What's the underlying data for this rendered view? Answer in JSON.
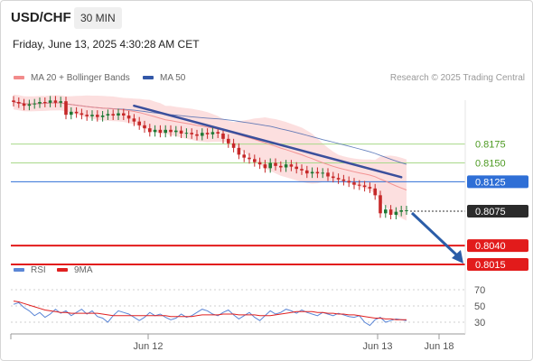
{
  "header": {
    "symbol": "USD/CHF",
    "timeframe": "30 MIN",
    "datetime": "Friday, June 13, 2025 4:30:28 AM CET"
  },
  "legend": {
    "ma20": {
      "label": "MA 20 + Bollinger Bands",
      "color": "#f28b8b"
    },
    "ma50": {
      "label": "MA 50",
      "color": "#3358a8"
    }
  },
  "credit": "Research © 2025 Trading Central",
  "rsi_legend": {
    "rsi": {
      "label": "RSI",
      "color": "#5b86d6"
    },
    "ma9": {
      "label": "9MA",
      "color": "#e02020"
    }
  },
  "chart_data": [
    {
      "type": "candlestick",
      "ylim": [
        0.7995,
        0.8245
      ],
      "x_labels": [
        "Jun 12",
        "Jun 13",
        "Jun 18"
      ],
      "closes": [
        0.8231,
        0.8229,
        0.8226,
        0.8228,
        0.8229,
        0.8231,
        0.823,
        0.8233,
        0.823,
        0.8232,
        0.8214,
        0.8218,
        0.8216,
        0.8214,
        0.8212,
        0.8214,
        0.8211,
        0.8213,
        0.8215,
        0.8213,
        0.8216,
        0.8213,
        0.8209,
        0.8205,
        0.82,
        0.8196,
        0.8191,
        0.8194,
        0.819,
        0.8194,
        0.8191,
        0.8193,
        0.8189,
        0.819,
        0.8188,
        0.8186,
        0.819,
        0.8188,
        0.8191,
        0.8189,
        0.8182,
        0.8176,
        0.817,
        0.8161,
        0.8157,
        0.8155,
        0.8151,
        0.8148,
        0.8143,
        0.815,
        0.8146,
        0.8144,
        0.8148,
        0.8145,
        0.8142,
        0.814,
        0.8136,
        0.8138,
        0.8136,
        0.8137,
        0.8132,
        0.813,
        0.8128,
        0.8126,
        0.8124,
        0.8121,
        0.812,
        0.8118,
        0.8116,
        0.8107,
        0.8083,
        0.8088,
        0.8081,
        0.8085,
        0.8087,
        0.8087
      ],
      "current_price": "0.8075",
      "levels": [
        {
          "value": 0.8175,
          "label": "0.8175",
          "kind": "resistance"
        },
        {
          "value": 0.815,
          "label": "0.8150",
          "kind": "resistance"
        },
        {
          "value": 0.8125,
          "label": "0.8125",
          "kind": "pivot"
        },
        {
          "value": 0.804,
          "label": "0.8040",
          "kind": "support"
        },
        {
          "value": 0.8015,
          "label": "0.8015",
          "kind": "support"
        }
      ],
      "trendline": [
        [
          0.8226,
          0.8131
        ]
      ],
      "projection_target": 0.8015,
      "colors": {
        "up": "#1e7a35",
        "down": "#c62828",
        "band": "#fbd4d4",
        "ma20": "#f28b8b",
        "ma50": "#3358a8",
        "trend": "#3a4f9c"
      }
    },
    {
      "type": "line",
      "name": "RSI",
      "ylim": [
        20,
        80
      ],
      "y_ticks": [
        70,
        50,
        30
      ],
      "series": [
        {
          "name": "RSI",
          "values": [
            52,
            54,
            48,
            44,
            38,
            42,
            36,
            40,
            46,
            41,
            44,
            38,
            42,
            46,
            40,
            44,
            37,
            35,
            30,
            38,
            44,
            42,
            40,
            36,
            32,
            36,
            42,
            38,
            40,
            36,
            33,
            35,
            40,
            36,
            38,
            42,
            46,
            44,
            40,
            38,
            42,
            45,
            39,
            34,
            38,
            42,
            36,
            32,
            38,
            44,
            40,
            42,
            46,
            44,
            41,
            45,
            42,
            40,
            38,
            42,
            40,
            38,
            41,
            39,
            37,
            36,
            38,
            30,
            26,
            33,
            36,
            30,
            32,
            34,
            33,
            32
          ]
        },
        {
          "name": "9MA",
          "values": [
            56,
            55,
            53,
            51,
            49,
            47,
            45,
            44,
            43,
            42,
            42,
            41,
            41,
            41,
            41,
            41,
            41,
            40,
            39,
            38,
            38,
            38,
            38,
            38,
            38,
            38,
            38,
            38,
            38,
            38,
            37,
            37,
            37,
            37,
            37,
            38,
            39,
            39,
            39,
            39,
            40,
            40,
            40,
            39,
            39,
            39,
            39,
            38,
            38,
            38,
            39,
            40,
            41,
            42,
            43,
            43,
            43,
            43,
            42,
            42,
            41,
            41,
            40,
            40,
            39,
            39,
            38,
            37,
            36,
            35,
            35,
            34,
            34,
            33,
            33,
            33
          ]
        }
      ]
    }
  ]
}
